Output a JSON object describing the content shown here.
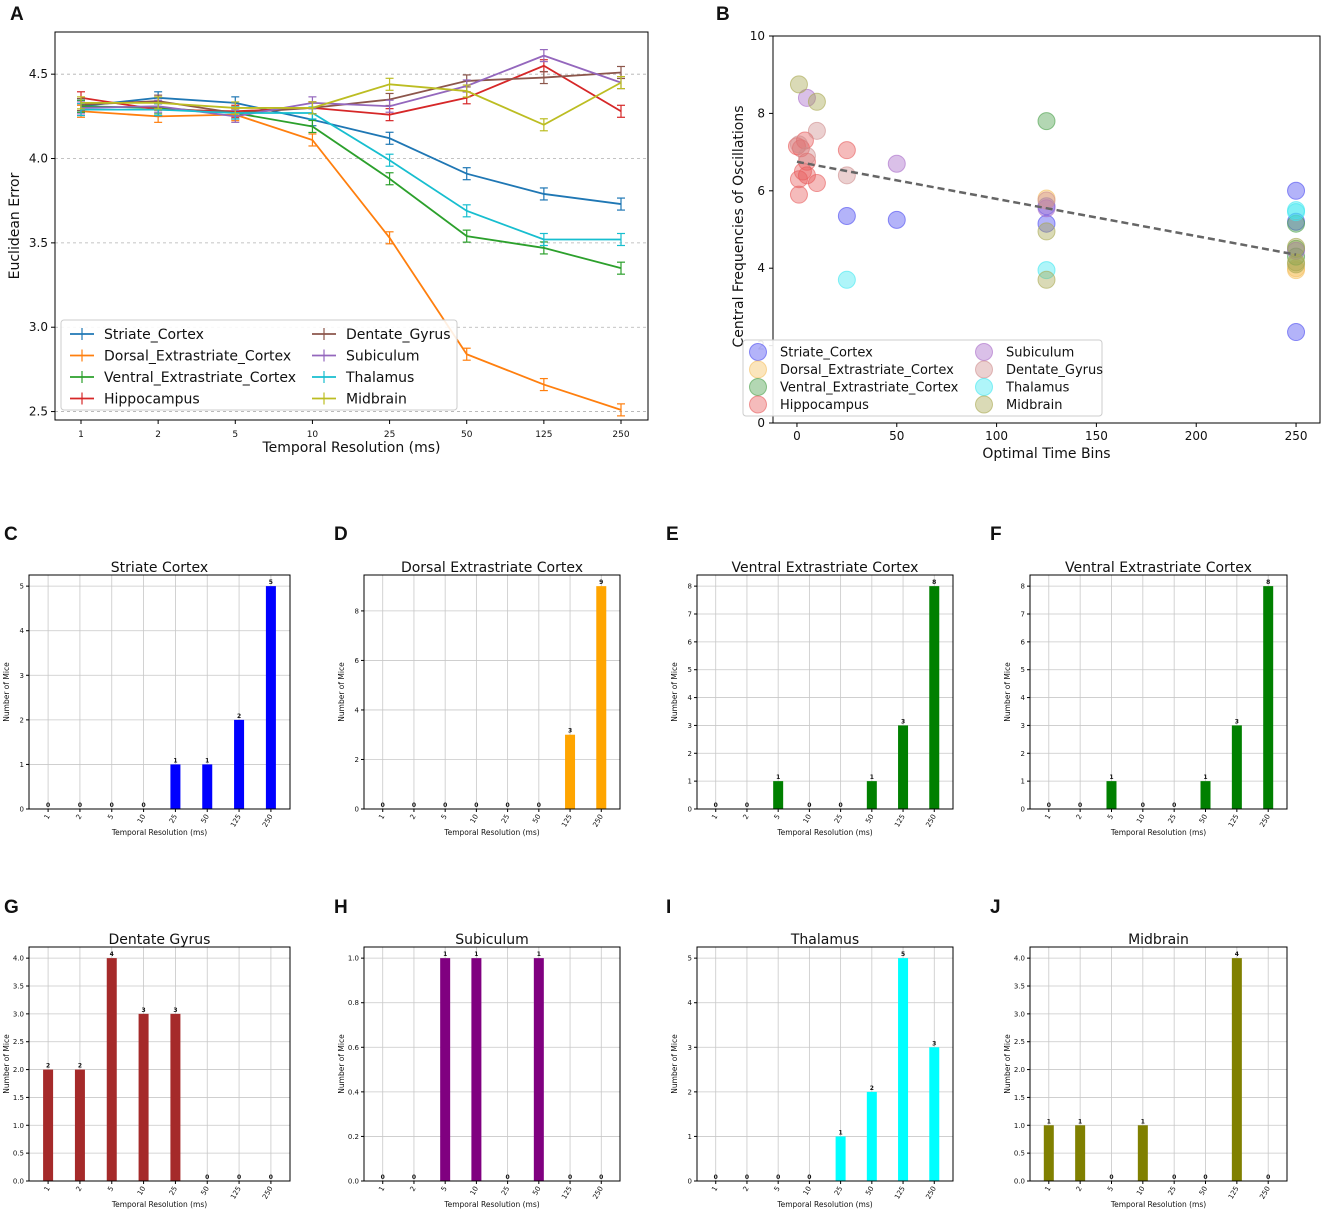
{
  "panel_labels": [
    "A",
    "B",
    "C",
    "D",
    "E",
    "F",
    "G",
    "H",
    "I",
    "J"
  ],
  "chart_data": [
    {
      "panel": "A",
      "type": "line",
      "title": "",
      "xlabel": "Temporal Resolution (ms)",
      "ylabel": "Euclidean Error",
      "categories": [
        "1",
        "2",
        "5",
        "10",
        "25",
        "50",
        "125",
        "250"
      ],
      "ylim": [
        2.45,
        4.75
      ],
      "yticks": [
        "2.5",
        "3.0",
        "3.5",
        "4.0",
        "4.5"
      ],
      "grid": "horizontal dashed",
      "legend_position": "lower-left",
      "series": [
        {
          "name": "Striate_Cortex",
          "color": "#1f77b4",
          "values": [
            4.31,
            4.36,
            4.33,
            4.23,
            4.12,
            3.91,
            3.79,
            3.73
          ]
        },
        {
          "name": "Dorsal_Extrastriate_Cortex",
          "color": "#ff7f0e",
          "values": [
            4.28,
            4.25,
            4.26,
            4.11,
            3.53,
            2.84,
            2.66,
            2.51
          ]
        },
        {
          "name": "Ventral_Extrastriate_Cortex",
          "color": "#2ca02c",
          "values": [
            4.31,
            4.3,
            4.27,
            4.19,
            3.88,
            3.54,
            3.47,
            3.35
          ]
        },
        {
          "name": "Hippocampus",
          "color": "#d62728",
          "values": [
            4.36,
            4.29,
            4.28,
            4.3,
            4.26,
            4.36,
            4.55,
            4.28
          ]
        },
        {
          "name": "Dentate_Gyrus",
          "color": "#8c564b",
          "values": [
            4.32,
            4.34,
            4.27,
            4.3,
            4.35,
            4.46,
            4.48,
            4.51
          ]
        },
        {
          "name": "Subiculum",
          "color": "#9467bd",
          "values": [
            4.3,
            4.31,
            4.25,
            4.33,
            4.31,
            4.43,
            4.61,
            4.45
          ]
        },
        {
          "name": "Thalamus",
          "color": "#17becf",
          "values": [
            4.29,
            4.29,
            4.27,
            4.27,
            3.99,
            3.69,
            3.52,
            3.52
          ]
        },
        {
          "name": "Midbrain",
          "color": "#bcbd22",
          "values": [
            4.33,
            4.33,
            4.3,
            4.3,
            4.44,
            4.4,
            4.2,
            4.45
          ]
        }
      ]
    },
    {
      "panel": "B",
      "type": "scatter",
      "title": "",
      "xlabel": "Optimal Time Bins",
      "ylabel": "Central Frequencies of Oscillations",
      "xlim": [
        -12,
        262
      ],
      "ylim": [
        0,
        10
      ],
      "xticks": [
        "0",
        "50",
        "100",
        "150",
        "200",
        "250"
      ],
      "yticks": [
        "0",
        "2",
        "4",
        "6",
        "8",
        "10"
      ],
      "trend_line": {
        "x": [
          0,
          250
        ],
        "y": [
          6.75,
          4.35
        ],
        "style": "dashed",
        "color": "#666666"
      },
      "legend_position": "lower-left",
      "series": [
        {
          "name": "Striate_Cortex",
          "color": "#4a4af0",
          "points": [
            [
              25,
              5.35
            ],
            [
              50,
              5.25
            ],
            [
              125,
              5.6
            ],
            [
              125,
              5.15
            ],
            [
              250,
              6.0
            ],
            [
              250,
              5.2
            ],
            [
              250,
              2.35
            ]
          ]
        },
        {
          "name": "Dorsal_Extrastriate_Cortex",
          "color": "#f5c060",
          "points": [
            [
              125,
              5.8
            ],
            [
              250,
              4.0
            ],
            [
              250,
              3.95
            ]
          ]
        },
        {
          "name": "Ventral_Extrastriate_Cortex",
          "color": "#49a049",
          "points": [
            [
              125,
              7.8
            ],
            [
              250,
              5.15
            ],
            [
              250,
              4.5
            ],
            [
              250,
              4.3
            ]
          ]
        },
        {
          "name": "Hippocampus",
          "color": "#e85c5c",
          "points": [
            [
              1,
              5.9
            ],
            [
              1,
              6.3
            ],
            [
              2,
              7.1
            ],
            [
              3,
              6.5
            ],
            [
              4,
              7.3
            ],
            [
              5,
              6.75
            ],
            [
              5,
              6.4
            ],
            [
              10,
              6.2
            ],
            [
              25,
              7.05
            ],
            [
              0,
              7.15
            ]
          ]
        },
        {
          "name": "Subiculum",
          "color": "#a86ac8",
          "points": [
            [
              5,
              8.4
            ],
            [
              50,
              6.7
            ],
            [
              125,
              5.55
            ],
            [
              250,
              4.45
            ]
          ]
        },
        {
          "name": "Dentate_Gyrus",
          "color": "#cf8e8e",
          "points": [
            [
              10,
              7.55
            ],
            [
              25,
              6.4
            ],
            [
              125,
              5.75
            ],
            [
              5,
              6.9
            ],
            [
              1,
              7.2
            ]
          ]
        },
        {
          "name": "Thalamus",
          "color": "#40e8f0",
          "points": [
            [
              25,
              3.7
            ],
            [
              125,
              3.95
            ],
            [
              250,
              5.5
            ],
            [
              250,
              5.45
            ]
          ]
        },
        {
          "name": "Midbrain",
          "color": "#a8a850",
          "points": [
            [
              1,
              8.75
            ],
            [
              10,
              8.3
            ],
            [
              125,
              4.95
            ],
            [
              125,
              3.7
            ],
            [
              250,
              4.1
            ],
            [
              250,
              4.15
            ],
            [
              250,
              4.55
            ]
          ]
        }
      ]
    },
    {
      "panel": "C",
      "type": "bar",
      "title": "Striate Cortex",
      "xlabel": "Temporal Resolution (ms)",
      "ylabel": "Number of Mice",
      "color": "#0000ff",
      "categories": [
        "1",
        "2",
        "5",
        "10",
        "25",
        "50",
        "125",
        "250"
      ],
      "values": [
        0,
        0,
        0,
        0,
        1,
        1,
        2,
        5
      ],
      "ylim": [
        0,
        5.25
      ],
      "yticks": [
        "0",
        "1",
        "2",
        "3",
        "4",
        "5"
      ]
    },
    {
      "panel": "D",
      "type": "bar",
      "title": "Dorsal Extrastriate Cortex",
      "xlabel": "Temporal Resolution (ms)",
      "ylabel": "Number of Mice",
      "color": "#ffa500",
      "categories": [
        "1",
        "2",
        "5",
        "10",
        "25",
        "50",
        "125",
        "250"
      ],
      "values": [
        0,
        0,
        0,
        0,
        0,
        0,
        3,
        9
      ],
      "ylim": [
        0,
        9.45
      ],
      "yticks": [
        "0",
        "2",
        "4",
        "6",
        "8"
      ]
    },
    {
      "panel": "E",
      "type": "bar",
      "title": "Ventral Extrastriate Cortex",
      "xlabel": "Temporal Resolution (ms)",
      "ylabel": "Number of Mice",
      "color": "#008000",
      "categories": [
        "1",
        "2",
        "5",
        "10",
        "25",
        "50",
        "125",
        "250"
      ],
      "values": [
        0,
        0,
        1,
        0,
        0,
        1,
        3,
        8
      ],
      "ylim": [
        0,
        8.4
      ],
      "yticks": [
        "0",
        "1",
        "2",
        "3",
        "4",
        "5",
        "6",
        "7",
        "8"
      ]
    },
    {
      "panel": "F",
      "type": "bar",
      "title": "Ventral Extrastriate Cortex",
      "xlabel": "Temporal Resolution (ms)",
      "ylabel": "Number of Mice",
      "color": "#008000",
      "categories": [
        "1",
        "2",
        "5",
        "10",
        "25",
        "50",
        "125",
        "250"
      ],
      "values": [
        0,
        0,
        1,
        0,
        0,
        1,
        3,
        8
      ],
      "ylim": [
        0,
        8.4
      ],
      "yticks": [
        "0",
        "1",
        "2",
        "3",
        "4",
        "5",
        "6",
        "7",
        "8"
      ]
    },
    {
      "panel": "G",
      "type": "bar",
      "title": "Dentate Gyrus",
      "xlabel": "Temporal Resolution (ms)",
      "ylabel": "Number of Mice",
      "color": "#a52a2a",
      "categories": [
        "1",
        "2",
        "5",
        "10",
        "25",
        "50",
        "125",
        "250"
      ],
      "values": [
        2,
        2,
        4,
        3,
        3,
        0,
        0,
        0
      ],
      "ylim": [
        0,
        4.2
      ],
      "yticks": [
        "0.0",
        "0.5",
        "1.0",
        "1.5",
        "2.0",
        "2.5",
        "3.0",
        "3.5",
        "4.0"
      ]
    },
    {
      "panel": "H",
      "type": "bar",
      "title": "Subiculum",
      "xlabel": "Temporal Resolution (ms)",
      "ylabel": "Number of Mice",
      "color": "#800080",
      "categories": [
        "1",
        "2",
        "5",
        "10",
        "25",
        "50",
        "125",
        "250"
      ],
      "values": [
        0,
        0,
        1,
        1,
        0,
        1,
        0,
        0
      ],
      "ylim": [
        0,
        1.05
      ],
      "yticks": [
        "0.0",
        "0.2",
        "0.4",
        "0.6",
        "0.8",
        "1.0"
      ]
    },
    {
      "panel": "I",
      "type": "bar",
      "title": "Thalamus",
      "xlabel": "Temporal Resolution (ms)",
      "ylabel": "Number of Mice",
      "color": "#00ffff",
      "categories": [
        "1",
        "2",
        "5",
        "10",
        "25",
        "50",
        "125",
        "250"
      ],
      "values": [
        0,
        0,
        0,
        0,
        1,
        2,
        5,
        3
      ],
      "ylim": [
        0,
        5.25
      ],
      "yticks": [
        "0",
        "1",
        "2",
        "3",
        "4",
        "5"
      ]
    },
    {
      "panel": "J",
      "type": "bar",
      "title": "Midbrain",
      "xlabel": "Temporal Resolution (ms)",
      "ylabel": "Number of Mice",
      "color": "#808000",
      "categories": [
        "1",
        "2",
        "5",
        "10",
        "25",
        "50",
        "125",
        "250"
      ],
      "values": [
        1,
        1,
        0,
        1,
        0,
        0,
        4,
        0
      ],
      "ylim": [
        0,
        4.2
      ],
      "yticks": [
        "0.0",
        "0.5",
        "1.0",
        "1.5",
        "2.0",
        "2.5",
        "3.0",
        "3.5",
        "4.0"
      ]
    }
  ]
}
